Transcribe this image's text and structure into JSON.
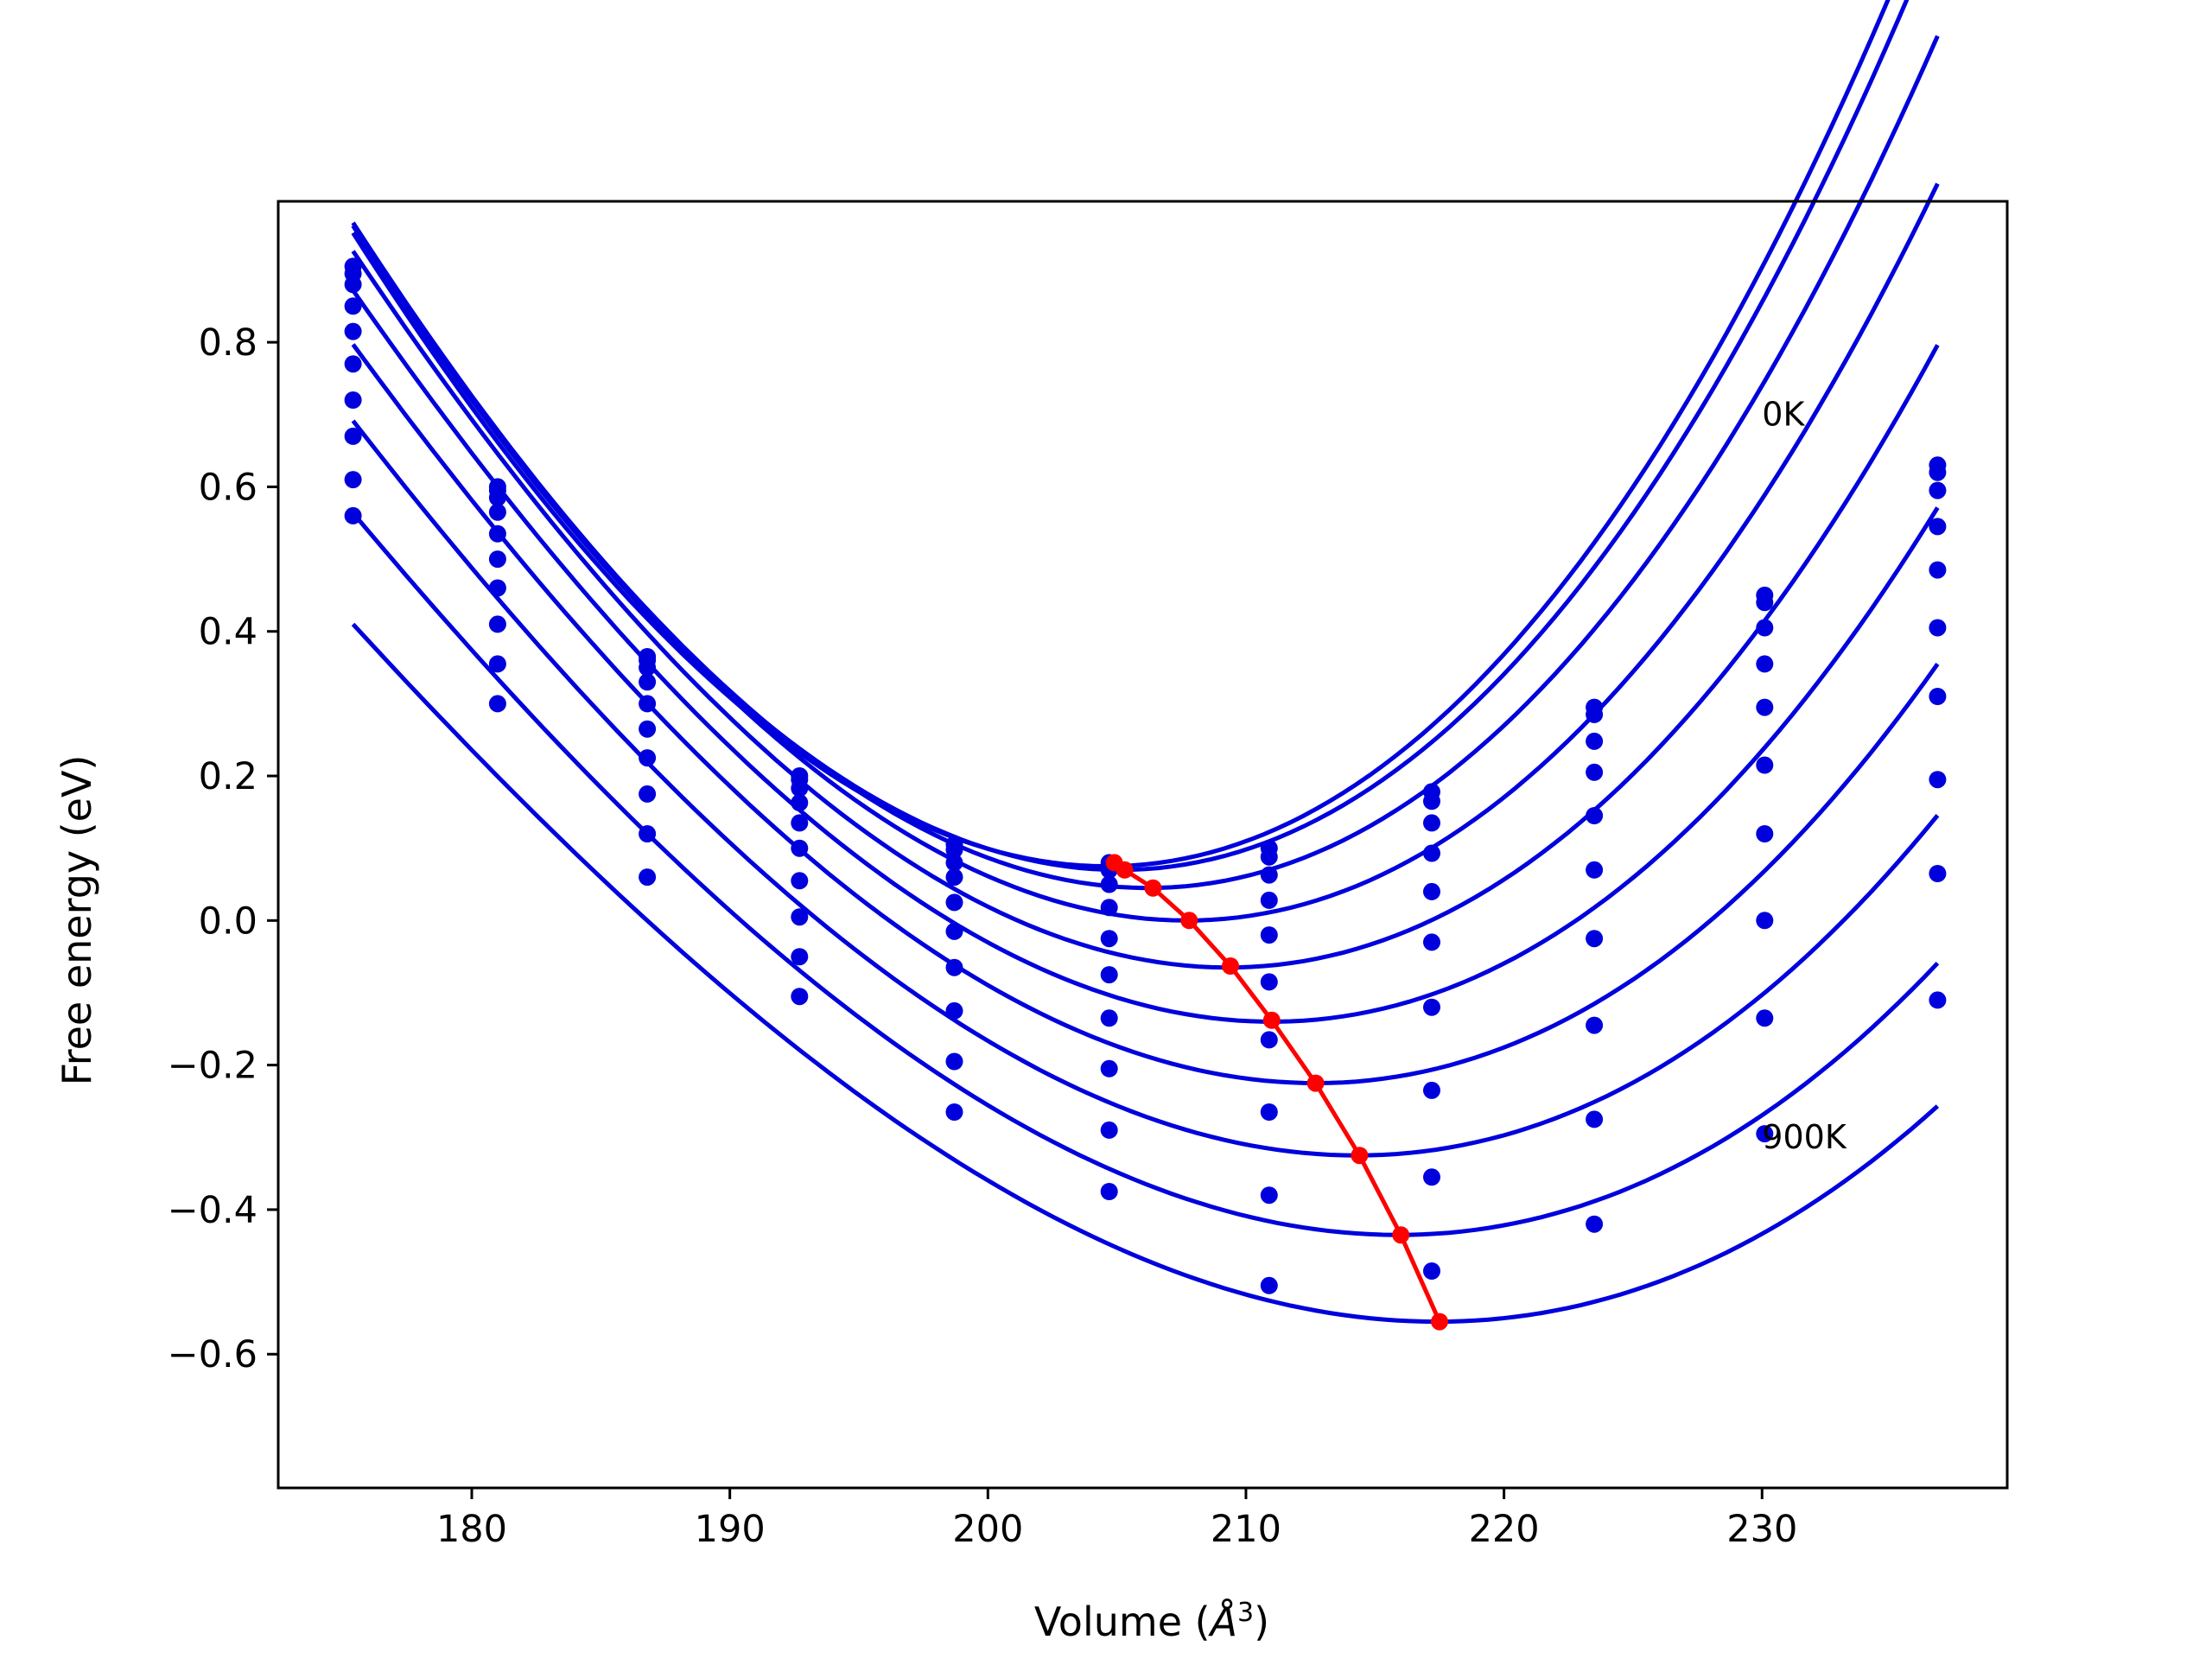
{
  "chart_data": {
    "type": "scatter",
    "xlabel": "Volume (",
    "xlabel_unit": "Å",
    "xlabel_exp": "3",
    "xlabel_close": ")",
    "ylabel": "Free energy (eV)",
    "xlim": [
      172.5,
      239.5
    ],
    "ylim": [
      -0.785,
      0.995
    ],
    "xticks": [
      180,
      190,
      200,
      210,
      220,
      230
    ],
    "xtick_labels": [
      "180",
      "190",
      "200",
      "210",
      "220",
      "230"
    ],
    "yticks": [
      -0.6,
      -0.4,
      -0.2,
      0.0,
      0.2,
      0.4,
      0.6,
      0.8
    ],
    "ytick_labels": [
      "−0.6",
      "−0.4",
      "−0.2",
      "0.0",
      "0.2",
      "0.4",
      "0.6",
      "0.8"
    ],
    "annotations": [
      {
        "text": "0K",
        "x": 230.0,
        "y": 0.685
      },
      {
        "text": "900K",
        "x": 230.0,
        "y": -0.315
      }
    ],
    "colors": {
      "curves": "#0000dd",
      "points": "#0000dd",
      "minimum_line": "#ff0000",
      "axes": "#000000"
    },
    "volumes": [
      175.4,
      181.0,
      186.8,
      192.7,
      198.7,
      204.7,
      210.9,
      217.2,
      223.5,
      230.1,
      236.8
    ],
    "curve_x_range": [
      175.4,
      236.8
    ],
    "series": [
      {
        "values": [
          0.905,
          0.6,
          0.365,
          0.2,
          0.105,
          0.08,
          0.1,
          0.178,
          0.295,
          0.45,
          0.63
        ],
        "fit_min": [
          204.6,
          0.075
        ],
        "fit_curvature": 0.001165,
        "fit_cubic": 4.7e-06
      },
      {
        "values": [
          0.895,
          0.595,
          0.36,
          0.195,
          0.098,
          0.07,
          0.088,
          0.165,
          0.285,
          0.44,
          0.62
        ],
        "fit_min": [
          205.1,
          0.07
        ],
        "fit_curvature": 0.00115,
        "fit_cubic": 4.7e-06
      },
      {
        "values": [
          0.88,
          0.585,
          0.35,
          0.183,
          0.08,
          0.05,
          0.063,
          0.135,
          0.248,
          0.405,
          0.595
        ],
        "fit_min": [
          206.2,
          0.045
        ],
        "fit_curvature": 0.001115,
        "fit_cubic": 4.7e-06
      },
      {
        "values": [
          0.85,
          0.565,
          0.33,
          0.163,
          0.06,
          0.018,
          0.028,
          0.093,
          0.205,
          0.355,
          0.545
        ],
        "fit_min": [
          207.7,
          0.0
        ],
        "fit_curvature": 0.00107,
        "fit_cubic": 4.6e-06
      },
      {
        "values": [
          0.815,
          0.535,
          0.3,
          0.135,
          0.025,
          -0.025,
          -0.02,
          0.04,
          0.145,
          0.295,
          0.485
        ],
        "fit_min": [
          209.3,
          -0.065
        ],
        "fit_curvature": 0.001015,
        "fit_cubic": 4.5e-06
      },
      {
        "values": [
          0.77,
          0.5,
          0.265,
          0.1,
          -0.015,
          -0.075,
          -0.085,
          -0.03,
          0.07,
          0.215,
          0.405
        ],
        "fit_min": [
          211.0,
          -0.14
        ],
        "fit_curvature": 0.000955,
        "fit_cubic": 4.4e-06
      },
      {
        "values": [
          0.72,
          0.46,
          0.225,
          0.055,
          -0.065,
          -0.135,
          -0.165,
          -0.12,
          -0.025,
          0.12,
          0.31
        ],
        "fit_min": [
          212.7,
          -0.225
        ],
        "fit_curvature": 0.000895,
        "fit_cubic": 4.3e-06
      },
      {
        "values": [
          0.67,
          0.41,
          0.175,
          0.005,
          -0.125,
          -0.205,
          -0.265,
          -0.235,
          -0.145,
          0.0,
          0.195
        ],
        "fit_min": [
          214.3,
          -0.325
        ],
        "fit_curvature": 0.000835,
        "fit_cubic": 4.2e-06
      },
      {
        "values": [
          0.61,
          0.355,
          0.12,
          -0.05,
          -0.195,
          -0.29,
          -0.38,
          -0.355,
          -0.275,
          -0.135,
          0.065
        ],
        "fit_min": [
          215.9,
          -0.435
        ],
        "fit_curvature": 0.000775,
        "fit_cubic": 4.1e-06
      },
      {
        "values": [
          0.56,
          0.3,
          0.06,
          -0.105,
          -0.265,
          -0.375,
          -0.505,
          -0.485,
          -0.42,
          -0.295,
          -0.11
        ],
        "fit_min": [
          217.4,
          -0.555
        ],
        "fit_curvature": 0.000715,
        "fit_cubic": 4e-06
      }
    ],
    "minimum_curve": {
      "x": [
        204.9,
        205.3,
        206.4,
        207.8,
        209.4,
        211.0,
        212.7,
        214.4,
        216.0,
        217.5
      ],
      "y": [
        0.08,
        0.07,
        0.045,
        0.0,
        -0.063,
        -0.138,
        -0.225,
        -0.325,
        -0.435,
        -0.555
      ]
    }
  }
}
